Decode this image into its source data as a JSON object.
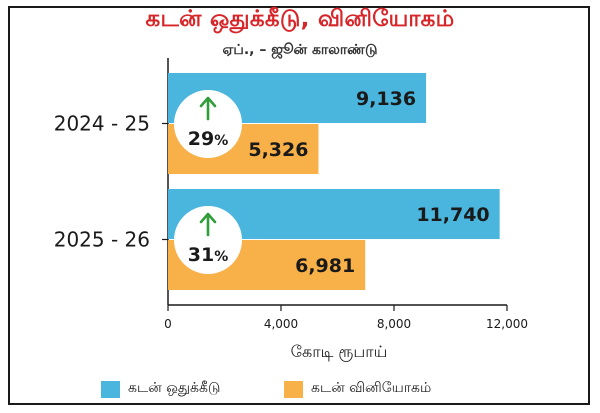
{
  "title": "கடன் ஒதுக்கீடு, வினியோகம்",
  "subtitle": "ஏப்., – ஜூன் காலாண்டு",
  "colors": {
    "title": "#d7262a",
    "allocation": "#4ab6dd",
    "disbursement": "#f8b048",
    "arrow": "#2f9d3a"
  },
  "chart_data": {
    "type": "bar",
    "orientation": "horizontal",
    "categories": [
      "2024 - 25",
      "2025 - 26"
    ],
    "series": [
      {
        "name": "கடன் ஒதுக்கீடு",
        "values": [
          9136,
          11740
        ],
        "labels": [
          "9,136",
          "11,740"
        ],
        "color": "#4ab6dd"
      },
      {
        "name": "கடன் வினியோகம்",
        "values": [
          5326,
          6981
        ],
        "labels": [
          "5,326",
          "6,981"
        ],
        "color": "#f8b048"
      }
    ],
    "annotations": [
      {
        "category": "2024 - 25",
        "text": "29",
        "unit": "%",
        "icon": "up-arrow-icon"
      },
      {
        "category": "2025 - 26",
        "text": "31",
        "unit": "%",
        "icon": "up-arrow-icon"
      }
    ],
    "xlabel": "கோடி ரூபாய்",
    "xlim": [
      0,
      12000
    ],
    "xticks": [
      0,
      4000,
      8000,
      12000
    ],
    "xtick_labels": [
      "0",
      "4,000",
      "8,000",
      "12,000"
    ],
    "grid": false,
    "legend": "bottom"
  }
}
